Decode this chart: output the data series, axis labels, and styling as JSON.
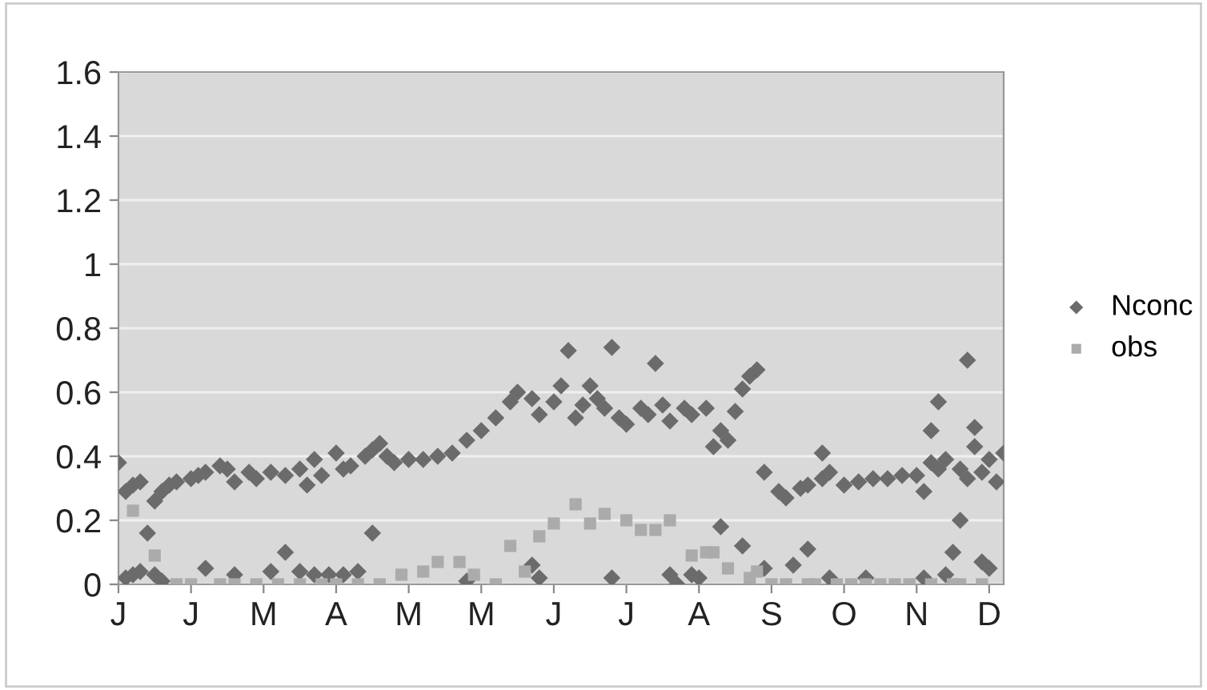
{
  "chart_data": {
    "type": "scatter",
    "legend": "right",
    "grid": "y",
    "categories": [
      "J",
      null,
      null,
      null,
      null,
      null,
      null,
      null,
      null,
      null,
      "J",
      null,
      null,
      null,
      null,
      null,
      null,
      null,
      null,
      null,
      "M",
      null,
      null,
      null,
      null,
      null,
      null,
      null,
      null,
      null,
      "A",
      null,
      null,
      null,
      null,
      null,
      null,
      null,
      null,
      null,
      "M",
      null,
      null,
      null,
      null,
      null,
      null,
      null,
      null,
      null,
      "M",
      null,
      null,
      null,
      null,
      null,
      null,
      null,
      null,
      null,
      "J",
      null,
      null,
      null,
      null,
      null,
      null,
      null,
      null,
      null,
      "J",
      null,
      null,
      null,
      null,
      null,
      null,
      null,
      null,
      null,
      "A",
      null,
      null,
      null,
      null,
      null,
      null,
      null,
      null,
      null,
      "S",
      null,
      null,
      null,
      null,
      null,
      null,
      null,
      null,
      null,
      "O",
      null,
      null,
      null,
      null,
      null,
      null,
      null,
      null,
      null,
      "N",
      null,
      null,
      null,
      null,
      null,
      null,
      null,
      null,
      null,
      "D",
      null,
      null
    ],
    "ylim": [
      0,
      1.6
    ],
    "yticks": [
      0,
      0.2,
      0.4,
      0.6,
      0.8,
      1,
      1.2,
      1.4,
      1.6
    ],
    "series": [
      {
        "name": "Nconc",
        "color": "#6b6b6b",
        "marker": "diamond",
        "values": [
          0.38,
          0.29,
          0.31,
          0.32,
          0.16,
          0.26,
          0.29,
          0.31,
          0.32,
          null,
          0.33,
          0.34,
          0.35,
          null,
          0.37,
          0.36,
          0.32,
          null,
          0.35,
          0.33,
          null,
          0.35,
          null,
          0.34,
          null,
          0.36,
          0.31,
          0.39,
          0.34,
          null,
          0.41,
          0.36,
          0.37,
          null,
          0.4,
          0.42,
          0.44,
          0.4,
          0.38,
          null,
          0.39,
          null,
          0.39,
          null,
          0.4,
          null,
          0.41,
          null,
          0.45,
          null,
          0.48,
          null,
          0.52,
          null,
          0.57,
          0.6,
          null,
          0.58,
          0.53,
          null,
          0.57,
          0.62,
          0.73,
          0.52,
          0.56,
          0.62,
          0.58,
          0.55,
          0.74,
          0.52,
          0.5,
          null,
          0.55,
          0.53,
          0.69,
          0.56,
          0.51,
          null,
          0.55,
          0.53,
          null,
          0.55,
          0.43,
          0.48,
          0.45,
          0.54,
          0.61,
          0.65,
          0.67,
          0.35,
          null,
          0.29,
          0.27,
          0.06,
          0.3,
          0.31,
          null,
          0.33,
          0.35,
          null,
          0.31,
          null,
          0.32,
          null,
          0.33,
          null,
          0.33,
          null,
          0.34,
          null,
          0.34,
          0.29,
          0.38,
          0.36,
          0.39,
          0.1,
          0.36,
          0.33,
          0.49,
          0.35,
          0.39,
          0.32,
          0.41
        ]
      },
      {
        "color": "#6b6b6b",
        "marker": "diamond",
        "values": [
          null,
          0.02,
          0.03,
          0.04,
          null,
          0.03,
          0.01,
          null,
          null,
          null,
          null,
          null,
          0.05,
          null,
          null,
          null,
          0.03,
          null,
          null,
          null,
          null,
          0.04,
          null,
          0.1,
          null,
          0.04,
          null,
          0.03,
          null,
          0.03,
          null,
          0.03,
          null,
          0.04,
          null,
          0.16,
          null,
          null,
          null,
          null,
          null,
          null,
          null,
          null,
          null,
          null,
          null,
          null,
          0.01,
          null,
          null,
          null,
          null,
          null,
          null,
          null,
          null,
          0.06,
          0.02,
          null,
          null,
          null,
          null,
          null,
          null,
          null,
          null,
          null,
          0.02,
          null,
          null,
          null,
          null,
          null,
          null,
          null,
          0.03,
          0.0,
          null,
          0.03,
          0.02,
          null,
          null,
          0.18,
          null,
          null,
          0.12,
          null,
          null,
          0.05,
          null,
          null,
          null,
          null,
          null,
          0.11,
          null,
          0.41,
          0.02,
          null,
          null,
          null,
          null,
          0.02,
          null,
          null,
          null,
          null,
          null,
          null,
          null,
          0.02,
          0.48,
          0.57,
          0.03,
          null,
          0.2,
          0.7,
          0.43,
          0.07,
          0.05,
          null,
          null
        ]
      },
      {
        "name": "obs",
        "color": "#ababab",
        "marker": "square",
        "values": [
          null,
          null,
          0.23,
          null,
          null,
          0.09,
          null,
          null,
          0.0,
          null,
          0.0,
          null,
          null,
          null,
          0.0,
          null,
          0.0,
          null,
          null,
          0.0,
          null,
          null,
          0.0,
          null,
          null,
          0.0,
          null,
          null,
          0.0,
          null,
          0.0,
          null,
          null,
          0.0,
          null,
          null,
          0.0,
          null,
          null,
          0.03,
          null,
          null,
          0.04,
          null,
          0.07,
          null,
          null,
          0.07,
          null,
          0.03,
          null,
          null,
          0.0,
          null,
          0.12,
          null,
          0.04,
          null,
          0.15,
          null,
          0.19,
          null,
          null,
          0.25,
          null,
          0.19,
          null,
          0.22,
          null,
          null,
          0.2,
          null,
          0.17,
          null,
          0.17,
          null,
          0.2,
          null,
          null,
          0.09,
          null,
          0.1,
          0.1,
          null,
          0.05,
          null,
          null,
          0.02,
          0.04,
          null,
          0.0,
          null,
          0.0,
          null,
          null,
          0.0,
          0.0,
          null,
          null,
          0.0,
          null,
          0.0,
          null,
          0.0,
          null,
          0.0,
          null,
          0.0,
          null,
          0.0,
          null,
          null,
          0.0,
          null,
          null,
          0.0,
          0.0,
          null,
          null,
          0.0,
          null,
          null,
          null
        ]
      }
    ]
  }
}
